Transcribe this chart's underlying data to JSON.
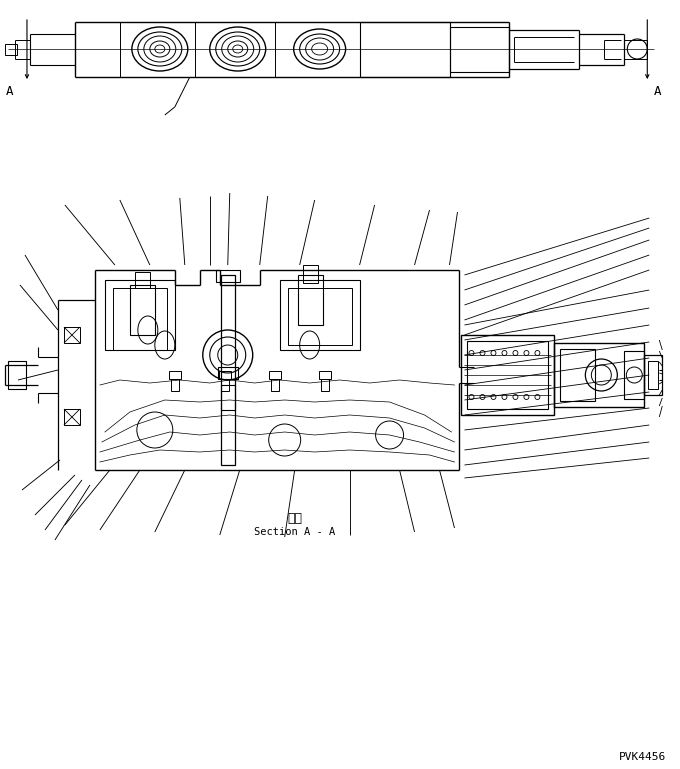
{
  "bg_color": "#ffffff",
  "line_color": "#000000",
  "fig_width": 6.8,
  "fig_height": 7.69,
  "dpi": 100,
  "section_label_japanese": "断面",
  "section_label_english": "Section A - A",
  "drawing_number": "PVK4456",
  "label_A_left": "A",
  "label_A_right": "A"
}
